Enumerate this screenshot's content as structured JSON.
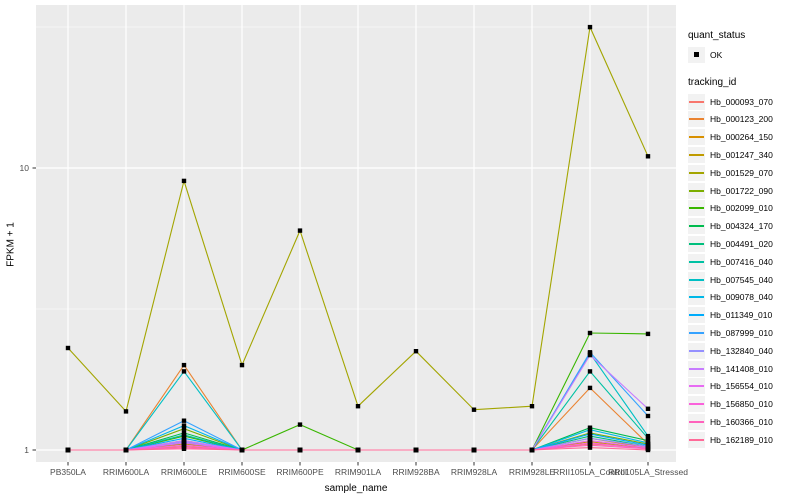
{
  "chart_data": {
    "type": "line",
    "title": "",
    "xlabel": "sample_name",
    "ylabel": "FPKM + 1",
    "grid": true,
    "legend_position": "right",
    "point_shape": "filled-square",
    "point_color": "#000000",
    "y_scale": {
      "type": "log10",
      "breaks": [
        1,
        10
      ],
      "minor_breaks": [
        3.162,
        31.62
      ],
      "domain": [
        1,
        38
      ]
    },
    "y_ticks": [
      {
        "label": "10",
        "value": 10
      },
      {
        "label": "1",
        "value": 1
      }
    ],
    "categories": [
      "PB350LA",
      "RRIM600LA",
      "RRIM600LE",
      "RRIM600SE",
      "RRIM600PE",
      "RRIM901LA",
      "RRIM928BA",
      "RRIM928LA",
      "RRIM928LE",
      "RRII105LA_Control",
      "RRII105LA_Stressed"
    ],
    "series": [
      {
        "name": "Hb_000093_070",
        "color": "#F8766D",
        "values": [
          1,
          1,
          1.03,
          1,
          1,
          1,
          1,
          1,
          1,
          1.05,
          1.02
        ]
      },
      {
        "name": "Hb_000123_200",
        "color": "#EA8331",
        "values": [
          1,
          1,
          2.0,
          1,
          1,
          1,
          1,
          1,
          1,
          1.66,
          1.05
        ]
      },
      {
        "name": "Hb_000264_150",
        "color": "#D89000",
        "values": [
          1,
          1,
          1.08,
          1,
          1,
          1,
          1,
          1,
          1,
          1.1,
          1.02
        ]
      },
      {
        "name": "Hb_001247_340",
        "color": "#C09B00",
        "values": [
          1,
          1,
          1.05,
          1,
          1,
          1,
          1,
          1,
          1,
          1.07,
          1.01
        ]
      },
      {
        "name": "Hb_001529_070",
        "color": "#A3A500",
        "values": [
          2.3,
          1.37,
          9.0,
          2.0,
          6.0,
          1.43,
          2.24,
          1.39,
          1.43,
          31.6,
          11.0
        ]
      },
      {
        "name": "Hb_001722_090",
        "color": "#7CAE00",
        "values": [
          1,
          1,
          1.19,
          1,
          1,
          1,
          1,
          1,
          1,
          1.15,
          1.05
        ]
      },
      {
        "name": "Hb_002099_010",
        "color": "#39B600",
        "values": [
          1,
          1,
          1.12,
          1,
          1.23,
          1,
          1,
          1,
          1,
          2.6,
          2.58
        ]
      },
      {
        "name": "Hb_004324_170",
        "color": "#00BB4E",
        "values": [
          1,
          1,
          1.15,
          1,
          1,
          1,
          1,
          1,
          1,
          1.2,
          1.08
        ]
      },
      {
        "name": "Hb_004491_020",
        "color": "#00BF7D",
        "values": [
          1,
          1,
          1.06,
          1,
          1,
          1,
          1,
          1,
          1,
          1.12,
          1.03
        ]
      },
      {
        "name": "Hb_007416_040",
        "color": "#00C1A3",
        "values": [
          1,
          1,
          1.13,
          1,
          1,
          1,
          1,
          1,
          1,
          1.9,
          1.1
        ]
      },
      {
        "name": "Hb_007545_040",
        "color": "#00BFC4",
        "values": [
          1,
          1,
          1.9,
          1,
          1,
          1,
          1,
          1,
          1,
          2.2,
          1.12
        ]
      },
      {
        "name": "Hb_009078_040",
        "color": "#00B8E7",
        "values": [
          1,
          1,
          1.22,
          1,
          1,
          1,
          1,
          1,
          1,
          1.18,
          1.06
        ]
      },
      {
        "name": "Hb_011349_010",
        "color": "#00ACFC",
        "values": [
          1,
          1,
          1.1,
          1,
          1,
          1,
          1,
          1,
          1,
          1.14,
          1.04
        ]
      },
      {
        "name": "Hb_087999_010",
        "color": "#35A2FF",
        "values": [
          1,
          1,
          1.27,
          1,
          1,
          1,
          1,
          1,
          1,
          2.22,
          1.32
        ]
      },
      {
        "name": "Hb_132840_040",
        "color": "#9590FF",
        "values": [
          1,
          1,
          1.07,
          1,
          1,
          1,
          1,
          1,
          1,
          1.1,
          1.03
        ]
      },
      {
        "name": "Hb_141408_010",
        "color": "#C77CFF",
        "values": [
          1,
          1,
          1.08,
          1,
          1,
          1,
          1,
          1,
          1,
          2.17,
          1.4
        ]
      },
      {
        "name": "Hb_156554_010",
        "color": "#E76BF3",
        "values": [
          1,
          1,
          1.06,
          1,
          1,
          1,
          1,
          1,
          1,
          1.08,
          1.02
        ]
      },
      {
        "name": "Hb_156850_010",
        "color": "#FA62DB",
        "values": [
          1,
          1,
          1.04,
          1,
          1,
          1,
          1,
          1,
          1,
          1.06,
          1.01
        ]
      },
      {
        "name": "Hb_160366_010",
        "color": "#FF62BC",
        "values": [
          1,
          1,
          1.02,
          1,
          1,
          1,
          1,
          1,
          1,
          1.04,
          1.01
        ]
      },
      {
        "name": "Hb_162189_010",
        "color": "#FF6A98",
        "values": [
          1,
          1,
          1.01,
          1,
          1,
          1,
          1,
          1,
          1,
          1.02,
          1.0
        ]
      }
    ]
  },
  "legend": {
    "quant_status_title": "quant_status",
    "quant_status_items": [
      {
        "label": "OK",
        "marker": "black-square"
      }
    ],
    "tracking_id_title": "tracking_id"
  },
  "colors": {
    "background": "#FFFFFF",
    "panel_bg": "#EBEBEB",
    "grid": "#FFFFFF",
    "axis_text": "#4D4D4D",
    "axis_title": "#000000",
    "tick_mark": "#333333",
    "legend_key_bg": "#F2F2F2"
  }
}
